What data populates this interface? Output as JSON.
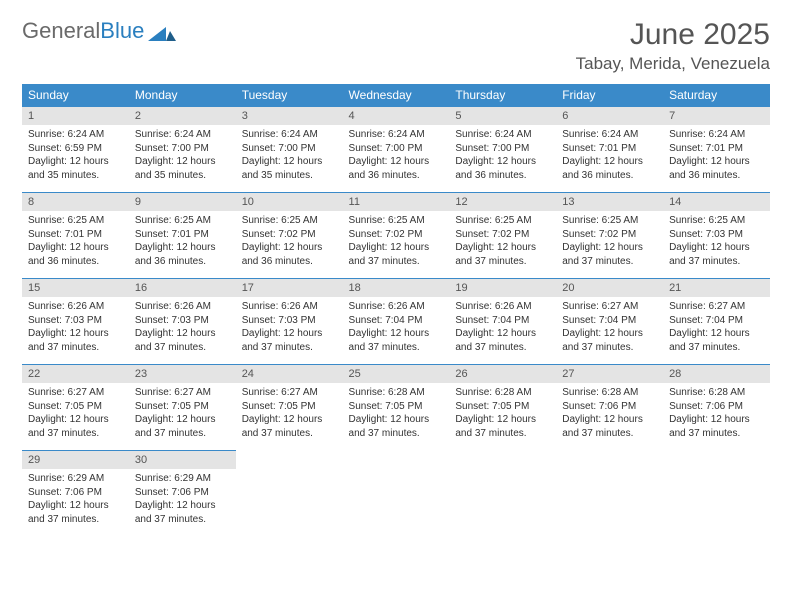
{
  "logo": {
    "word1": "General",
    "word2": "Blue"
  },
  "title": "June 2025",
  "location": "Tabay, Merida, Venezuela",
  "colors": {
    "header_bg": "#3a8ac9",
    "header_text": "#ffffff",
    "daynum_bg": "#e4e4e4",
    "border": "#3a8ac9",
    "body_text": "#333333",
    "title_text": "#555555"
  },
  "weekdays": [
    "Sunday",
    "Monday",
    "Tuesday",
    "Wednesday",
    "Thursday",
    "Friday",
    "Saturday"
  ],
  "days": [
    {
      "n": 1,
      "sr": "6:24 AM",
      "ss": "6:59 PM",
      "dh": 12,
      "dm": 35
    },
    {
      "n": 2,
      "sr": "6:24 AM",
      "ss": "7:00 PM",
      "dh": 12,
      "dm": 35
    },
    {
      "n": 3,
      "sr": "6:24 AM",
      "ss": "7:00 PM",
      "dh": 12,
      "dm": 35
    },
    {
      "n": 4,
      "sr": "6:24 AM",
      "ss": "7:00 PM",
      "dh": 12,
      "dm": 36
    },
    {
      "n": 5,
      "sr": "6:24 AM",
      "ss": "7:00 PM",
      "dh": 12,
      "dm": 36
    },
    {
      "n": 6,
      "sr": "6:24 AM",
      "ss": "7:01 PM",
      "dh": 12,
      "dm": 36
    },
    {
      "n": 7,
      "sr": "6:24 AM",
      "ss": "7:01 PM",
      "dh": 12,
      "dm": 36
    },
    {
      "n": 8,
      "sr": "6:25 AM",
      "ss": "7:01 PM",
      "dh": 12,
      "dm": 36
    },
    {
      "n": 9,
      "sr": "6:25 AM",
      "ss": "7:01 PM",
      "dh": 12,
      "dm": 36
    },
    {
      "n": 10,
      "sr": "6:25 AM",
      "ss": "7:02 PM",
      "dh": 12,
      "dm": 36
    },
    {
      "n": 11,
      "sr": "6:25 AM",
      "ss": "7:02 PM",
      "dh": 12,
      "dm": 37
    },
    {
      "n": 12,
      "sr": "6:25 AM",
      "ss": "7:02 PM",
      "dh": 12,
      "dm": 37
    },
    {
      "n": 13,
      "sr": "6:25 AM",
      "ss": "7:02 PM",
      "dh": 12,
      "dm": 37
    },
    {
      "n": 14,
      "sr": "6:25 AM",
      "ss": "7:03 PM",
      "dh": 12,
      "dm": 37
    },
    {
      "n": 15,
      "sr": "6:26 AM",
      "ss": "7:03 PM",
      "dh": 12,
      "dm": 37
    },
    {
      "n": 16,
      "sr": "6:26 AM",
      "ss": "7:03 PM",
      "dh": 12,
      "dm": 37
    },
    {
      "n": 17,
      "sr": "6:26 AM",
      "ss": "7:03 PM",
      "dh": 12,
      "dm": 37
    },
    {
      "n": 18,
      "sr": "6:26 AM",
      "ss": "7:04 PM",
      "dh": 12,
      "dm": 37
    },
    {
      "n": 19,
      "sr": "6:26 AM",
      "ss": "7:04 PM",
      "dh": 12,
      "dm": 37
    },
    {
      "n": 20,
      "sr": "6:27 AM",
      "ss": "7:04 PM",
      "dh": 12,
      "dm": 37
    },
    {
      "n": 21,
      "sr": "6:27 AM",
      "ss": "7:04 PM",
      "dh": 12,
      "dm": 37
    },
    {
      "n": 22,
      "sr": "6:27 AM",
      "ss": "7:05 PM",
      "dh": 12,
      "dm": 37
    },
    {
      "n": 23,
      "sr": "6:27 AM",
      "ss": "7:05 PM",
      "dh": 12,
      "dm": 37
    },
    {
      "n": 24,
      "sr": "6:27 AM",
      "ss": "7:05 PM",
      "dh": 12,
      "dm": 37
    },
    {
      "n": 25,
      "sr": "6:28 AM",
      "ss": "7:05 PM",
      "dh": 12,
      "dm": 37
    },
    {
      "n": 26,
      "sr": "6:28 AM",
      "ss": "7:05 PM",
      "dh": 12,
      "dm": 37
    },
    {
      "n": 27,
      "sr": "6:28 AM",
      "ss": "7:06 PM",
      "dh": 12,
      "dm": 37
    },
    {
      "n": 28,
      "sr": "6:28 AM",
      "ss": "7:06 PM",
      "dh": 12,
      "dm": 37
    },
    {
      "n": 29,
      "sr": "6:29 AM",
      "ss": "7:06 PM",
      "dh": 12,
      "dm": 37
    },
    {
      "n": 30,
      "sr": "6:29 AM",
      "ss": "7:06 PM",
      "dh": 12,
      "dm": 37
    }
  ],
  "labels": {
    "sunrise": "Sunrise:",
    "sunset": "Sunset:",
    "daylight": "Daylight:",
    "hours": "hours",
    "and": "and",
    "minutes": "minutes."
  }
}
